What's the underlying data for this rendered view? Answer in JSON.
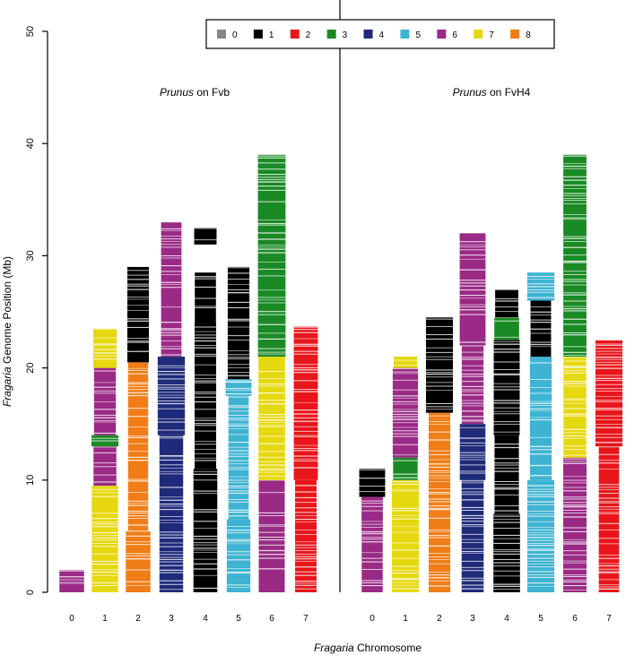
{
  "chart_data": {
    "type": "bar",
    "title": "",
    "ylabel_italic": "Fragaria",
    "ylabel_rest": " Genome Position (Mb)",
    "xlabel_italic": "Fragaria",
    "xlabel_rest": " Chromosome",
    "ylim": [
      0,
      50
    ],
    "yticks": [
      0,
      10,
      20,
      30,
      40,
      50
    ],
    "categories": [
      "0",
      "1",
      "2",
      "3",
      "4",
      "5",
      "6",
      "7"
    ],
    "legend": {
      "position": "top-center",
      "entries": [
        {
          "label": "0",
          "color": "#888888"
        },
        {
          "label": "1",
          "color": "#000000"
        },
        {
          "label": "2",
          "color": "#e8161b"
        },
        {
          "label": "3",
          "color": "#1a8a24"
        },
        {
          "label": "4",
          "color": "#1f2a7a"
        },
        {
          "label": "5",
          "color": "#3fb3d2"
        },
        {
          "label": "6",
          "color": "#9a2a86"
        },
        {
          "label": "7",
          "color": "#e6d80f"
        },
        {
          "label": "8",
          "color": "#f07d17"
        }
      ]
    },
    "panels": [
      {
        "title_italic": "Prunus",
        "title_rest": " on Fvb",
        "chromosomes": [
          {
            "chr": "0",
            "segments": [
              [
                0,
                2.0,
                "6"
              ]
            ]
          },
          {
            "chr": "1",
            "segments": [
              [
                0,
                9.5,
                "7"
              ],
              [
                9.5,
                13.0,
                "6"
              ],
              [
                13.0,
                14.0,
                "3"
              ],
              [
                14.0,
                20.0,
                "6"
              ],
              [
                20.0,
                23.5,
                "7"
              ]
            ]
          },
          {
            "chr": "2",
            "segments": [
              [
                0,
                5.5,
                "8"
              ],
              [
                5.5,
                20.5,
                "8"
              ],
              [
                20.5,
                29.0,
                "1"
              ]
            ]
          },
          {
            "chr": "3",
            "segments": [
              [
                0,
                14.0,
                "4"
              ],
              [
                14.0,
                21.0,
                "4"
              ],
              [
                21.0,
                33.0,
                "6"
              ]
            ]
          },
          {
            "chr": "4",
            "segments": [
              [
                0,
                11.0,
                "1"
              ],
              [
                11.0,
                24.0,
                "1"
              ],
              [
                24.0,
                28.5,
                "1"
              ],
              [
                31.0,
                32.5,
                "1"
              ]
            ]
          },
          {
            "chr": "5",
            "segments": [
              [
                0,
                6.5,
                "5"
              ],
              [
                6.5,
                17.5,
                "5"
              ],
              [
                17.5,
                19.0,
                "5"
              ],
              [
                19.0,
                29.0,
                "1"
              ]
            ]
          },
          {
            "chr": "6",
            "segments": [
              [
                0,
                10.0,
                "6"
              ],
              [
                10.0,
                21.0,
                "7"
              ],
              [
                21.0,
                39.0,
                "3"
              ]
            ]
          },
          {
            "chr": "7",
            "segments": [
              [
                0,
                10.0,
                "2"
              ],
              [
                10.0,
                23.7,
                "2"
              ]
            ]
          }
        ]
      },
      {
        "title_italic": "Prunus",
        "title_rest": " on FvH4",
        "chromosomes": [
          {
            "chr": "0",
            "segments": [
              [
                0,
                5.5,
                "6"
              ],
              [
                5.5,
                8.5,
                "6"
              ],
              [
                8.5,
                11.0,
                "1"
              ]
            ]
          },
          {
            "chr": "1",
            "segments": [
              [
                0,
                10.0,
                "7"
              ],
              [
                10.0,
                12.0,
                "3"
              ],
              [
                12.0,
                20.0,
                "6"
              ],
              [
                20.0,
                21.0,
                "7"
              ]
            ]
          },
          {
            "chr": "2",
            "segments": [
              [
                0,
                16.0,
                "8"
              ],
              [
                16.0,
                24.5,
                "1"
              ]
            ]
          },
          {
            "chr": "3",
            "segments": [
              [
                0,
                10.0,
                "4"
              ],
              [
                10.0,
                15.0,
                "4"
              ],
              [
                15.0,
                22.0,
                "6"
              ],
              [
                22.0,
                32.0,
                "6"
              ]
            ]
          },
          {
            "chr": "4",
            "segments": [
              [
                0,
                7.0,
                "1"
              ],
              [
                7.0,
                14.0,
                "1"
              ],
              [
                14.0,
                22.5,
                "1"
              ],
              [
                22.5,
                24.5,
                "3"
              ],
              [
                24.5,
                27.0,
                "1"
              ]
            ]
          },
          {
            "chr": "5",
            "segments": [
              [
                0,
                10.0,
                "5"
              ],
              [
                10.0,
                21.0,
                "5"
              ],
              [
                21.0,
                26.0,
                "1"
              ],
              [
                26.0,
                28.5,
                "5"
              ]
            ]
          },
          {
            "chr": "6",
            "segments": [
              [
                0,
                12.0,
                "6"
              ],
              [
                12.0,
                21.0,
                "7"
              ],
              [
                21.0,
                39.0,
                "3"
              ]
            ]
          },
          {
            "chr": "7",
            "segments": [
              [
                0,
                13.0,
                "2"
              ],
              [
                13.0,
                22.5,
                "2"
              ]
            ]
          }
        ]
      }
    ]
  }
}
